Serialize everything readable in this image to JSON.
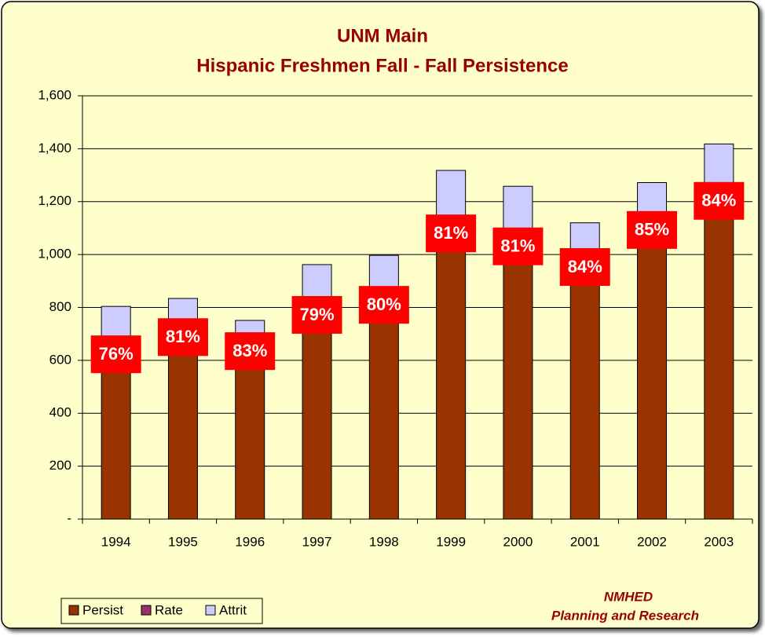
{
  "chart_data": {
    "type": "stacked_bar",
    "title": "UNM Main",
    "subtitle": "Hispanic Freshmen Fall - Fall Persistence",
    "categories": [
      "1994",
      "1995",
      "1996",
      "1997",
      "1998",
      "1999",
      "2000",
      "2001",
      "2002",
      "2003"
    ],
    "series": [
      {
        "name": "Persist",
        "color": "#993300",
        "values": [
          611,
          676,
          623,
          760,
          798,
          1068,
          1019,
          941,
          1081,
          1191
        ]
      },
      {
        "name": "Rate",
        "color": "#993366",
        "values": [
          76,
          81,
          83,
          79,
          80,
          81,
          81,
          84,
          85,
          84
        ],
        "value_labels": [
          "76%",
          "81%",
          "83%",
          "79%",
          "80%",
          "81%",
          "81%",
          "84%",
          "85%",
          "84%"
        ]
      },
      {
        "name": "Attrit",
        "color": "#ccccff",
        "values": [
          193,
          158,
          128,
          202,
          199,
          250,
          239,
          179,
          191,
          227
        ]
      }
    ],
    "ylim": [
      0,
      1600
    ],
    "yticks": [
      {
        "value": 0,
        "label": "-"
      },
      200,
      400,
      600,
      800,
      {
        "value": 1000,
        "label": "1,000"
      },
      {
        "value": 1200,
        "label": "1,200"
      },
      {
        "value": 1400,
        "label": "1,400"
      },
      {
        "value": 1600,
        "label": "1,600"
      }
    ],
    "grid": true,
    "legend": "bottom-left",
    "annotations": [
      "NMHED",
      "Planning and Research"
    ]
  }
}
